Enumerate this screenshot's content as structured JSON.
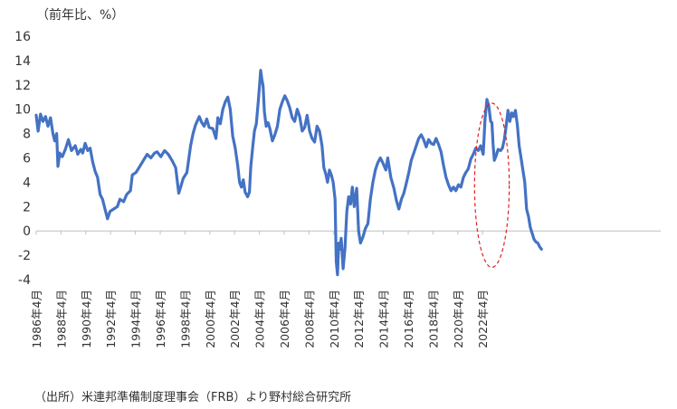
{
  "unit_label": "（前年比、%）",
  "source_note": "（出所）米連邦準備制度理事会（FRB）より野村総合研究所",
  "chart_data": {
    "type": "line",
    "title": "",
    "xlabel": "",
    "ylabel": "（前年比、%）",
    "ylim": [
      -4,
      16
    ],
    "y_ticks": [
      -4,
      -2,
      0,
      2,
      4,
      6,
      8,
      10,
      12,
      14,
      16
    ],
    "grid": false,
    "x_ticks": [
      "1986年4月",
      "1988年4月",
      "1990年4月",
      "1992年4月",
      "1994年4月",
      "1996年4月",
      "1998年4月",
      "2000年4月",
      "2002年4月",
      "2004年4月",
      "2006年4月",
      "2008年4月",
      "2010年4月",
      "2012年4月",
      "2014年4月",
      "2016年4月",
      "2018年4月",
      "2020年4月",
      "2022年4月"
    ],
    "series_color": "#4472c4",
    "annotation": {
      "type": "ellipse",
      "style": "dashed",
      "color": "#e02020",
      "x_range": [
        2021.6,
        2024.4
      ],
      "y_range": [
        -3,
        10.5
      ]
    },
    "series": [
      {
        "name": "",
        "points": [
          [
            1986.25,
            9.5
          ],
          [
            1986.4,
            8.2
          ],
          [
            1986.6,
            9.6
          ],
          [
            1986.8,
            9.0
          ],
          [
            1987.0,
            9.4
          ],
          [
            1987.2,
            8.6
          ],
          [
            1987.4,
            9.3
          ],
          [
            1987.6,
            8.0
          ],
          [
            1987.75,
            7.4
          ],
          [
            1987.9,
            8.0
          ],
          [
            1988.0,
            5.3
          ],
          [
            1988.15,
            6.4
          ],
          [
            1988.35,
            6.1
          ],
          [
            1988.6,
            6.7
          ],
          [
            1988.85,
            7.5
          ],
          [
            1989.1,
            6.6
          ],
          [
            1989.4,
            7.0
          ],
          [
            1989.6,
            6.3
          ],
          [
            1989.85,
            6.7
          ],
          [
            1990.0,
            6.4
          ],
          [
            1990.2,
            7.2
          ],
          [
            1990.4,
            6.6
          ],
          [
            1990.6,
            6.8
          ],
          [
            1990.8,
            5.7
          ],
          [
            1991.0,
            4.9
          ],
          [
            1991.2,
            4.4
          ],
          [
            1991.4,
            3.0
          ],
          [
            1991.6,
            2.6
          ],
          [
            1991.8,
            1.8
          ],
          [
            1992.0,
            1.0
          ],
          [
            1992.2,
            1.6
          ],
          [
            1992.5,
            1.8
          ],
          [
            1992.8,
            2.0
          ],
          [
            1993.0,
            2.6
          ],
          [
            1993.3,
            2.4
          ],
          [
            1993.55,
            3.0
          ],
          [
            1993.85,
            3.3
          ],
          [
            1994.0,
            4.6
          ],
          [
            1994.3,
            4.8
          ],
          [
            1994.6,
            5.3
          ],
          [
            1994.9,
            5.8
          ],
          [
            1995.2,
            6.3
          ],
          [
            1995.5,
            6.0
          ],
          [
            1995.8,
            6.4
          ],
          [
            1996.0,
            6.5
          ],
          [
            1996.3,
            6.1
          ],
          [
            1996.6,
            6.6
          ],
          [
            1996.9,
            6.3
          ],
          [
            1997.2,
            5.8
          ],
          [
            1997.5,
            5.2
          ],
          [
            1997.75,
            3.1
          ],
          [
            1997.9,
            3.6
          ],
          [
            1998.1,
            4.3
          ],
          [
            1998.4,
            4.8
          ],
          [
            1998.7,
            7.0
          ],
          [
            1998.9,
            8.0
          ],
          [
            1999.1,
            8.7
          ],
          [
            1999.4,
            9.4
          ],
          [
            1999.6,
            8.9
          ],
          [
            1999.8,
            8.6
          ],
          [
            2000.0,
            9.2
          ],
          [
            2000.2,
            8.5
          ],
          [
            2000.5,
            8.4
          ],
          [
            2000.75,
            7.6
          ],
          [
            2000.9,
            9.3
          ],
          [
            2001.1,
            8.8
          ],
          [
            2001.3,
            10.0
          ],
          [
            2001.5,
            10.6
          ],
          [
            2001.7,
            11.0
          ],
          [
            2001.9,
            10.0
          ],
          [
            2002.1,
            7.8
          ],
          [
            2002.3,
            6.8
          ],
          [
            2002.5,
            5.4
          ],
          [
            2002.65,
            4.0
          ],
          [
            2002.8,
            3.6
          ],
          [
            2002.95,
            4.2
          ],
          [
            2003.1,
            3.2
          ],
          [
            2003.3,
            2.8
          ],
          [
            2003.45,
            3.2
          ],
          [
            2003.55,
            5.2
          ],
          [
            2003.7,
            6.8
          ],
          [
            2003.85,
            8.2
          ],
          [
            2004.0,
            8.8
          ],
          [
            2004.15,
            10.5
          ],
          [
            2004.25,
            11.8
          ],
          [
            2004.35,
            13.2
          ],
          [
            2004.45,
            12.5
          ],
          [
            2004.55,
            11.9
          ],
          [
            2004.65,
            9.8
          ],
          [
            2004.8,
            8.6
          ],
          [
            2004.95,
            8.9
          ],
          [
            2005.1,
            8.4
          ],
          [
            2005.3,
            7.4
          ],
          [
            2005.5,
            7.9
          ],
          [
            2005.7,
            8.6
          ],
          [
            2005.9,
            10.0
          ],
          [
            2006.1,
            10.6
          ],
          [
            2006.3,
            11.1
          ],
          [
            2006.5,
            10.7
          ],
          [
            2006.7,
            10.1
          ],
          [
            2006.9,
            9.3
          ],
          [
            2007.1,
            9.0
          ],
          [
            2007.3,
            10.0
          ],
          [
            2007.5,
            9.4
          ],
          [
            2007.7,
            8.2
          ],
          [
            2007.9,
            8.5
          ],
          [
            2008.1,
            9.5
          ],
          [
            2008.3,
            8.2
          ],
          [
            2008.5,
            7.6
          ],
          [
            2008.7,
            7.3
          ],
          [
            2008.9,
            8.6
          ],
          [
            2009.1,
            8.2
          ],
          [
            2009.3,
            7.0
          ],
          [
            2009.45,
            5.2
          ],
          [
            2009.6,
            4.7
          ],
          [
            2009.75,
            4.0
          ],
          [
            2009.9,
            5.0
          ],
          [
            2010.05,
            4.6
          ],
          [
            2010.2,
            4.0
          ],
          [
            2010.35,
            2.6
          ],
          [
            2010.45,
            -2.5
          ],
          [
            2010.55,
            -3.6
          ],
          [
            2010.65,
            -1.0
          ],
          [
            2010.75,
            -1.5
          ],
          [
            2010.85,
            -0.6
          ],
          [
            2011.0,
            -3.1
          ],
          [
            2011.15,
            -1.5
          ],
          [
            2011.3,
            1.6
          ],
          [
            2011.45,
            2.8
          ],
          [
            2011.6,
            2.2
          ],
          [
            2011.75,
            3.6
          ],
          [
            2011.9,
            2.0
          ],
          [
            2012.1,
            3.5
          ],
          [
            2012.25,
            0.0
          ],
          [
            2012.4,
            -1.0
          ],
          [
            2012.6,
            -0.5
          ],
          [
            2012.8,
            0.2
          ],
          [
            2013.0,
            0.6
          ],
          [
            2013.2,
            2.6
          ],
          [
            2013.4,
            4.0
          ],
          [
            2013.6,
            5.0
          ],
          [
            2013.8,
            5.6
          ],
          [
            2014.0,
            6.0
          ],
          [
            2014.2,
            5.6
          ],
          [
            2014.45,
            5.0
          ],
          [
            2014.6,
            6.0
          ],
          [
            2014.85,
            4.4
          ],
          [
            2015.1,
            3.5
          ],
          [
            2015.3,
            2.5
          ],
          [
            2015.5,
            1.8
          ],
          [
            2015.7,
            2.6
          ],
          [
            2015.9,
            3.1
          ],
          [
            2016.1,
            3.9
          ],
          [
            2016.3,
            4.8
          ],
          [
            2016.5,
            5.8
          ],
          [
            2016.7,
            6.4
          ],
          [
            2016.9,
            7.0
          ],
          [
            2017.1,
            7.6
          ],
          [
            2017.3,
            7.9
          ],
          [
            2017.5,
            7.5
          ],
          [
            2017.7,
            6.9
          ],
          [
            2017.9,
            7.5
          ],
          [
            2018.1,
            7.2
          ],
          [
            2018.3,
            7.1
          ],
          [
            2018.5,
            7.6
          ],
          [
            2018.7,
            7.1
          ],
          [
            2018.9,
            6.5
          ],
          [
            2019.1,
            5.4
          ],
          [
            2019.3,
            4.4
          ],
          [
            2019.5,
            3.8
          ],
          [
            2019.7,
            3.3
          ],
          [
            2019.9,
            3.6
          ],
          [
            2020.1,
            3.3
          ],
          [
            2020.3,
            3.8
          ],
          [
            2020.5,
            3.6
          ],
          [
            2020.7,
            4.4
          ],
          [
            2020.9,
            4.8
          ],
          [
            2021.1,
            5.1
          ],
          [
            2021.3,
            5.9
          ],
          [
            2021.5,
            6.3
          ],
          [
            2021.7,
            6.8
          ],
          [
            2021.9,
            6.6
          ],
          [
            2022.1,
            7.0
          ],
          [
            2022.3,
            6.3
          ],
          [
            2022.45,
            9.2
          ],
          [
            2022.6,
            10.8
          ],
          [
            2022.75,
            10.3
          ],
          [
            2022.9,
            9.0
          ],
          [
            2023.0,
            8.9
          ],
          [
            2023.1,
            7.1
          ],
          [
            2023.2,
            5.8
          ],
          [
            2023.35,
            6.2
          ],
          [
            2023.5,
            6.7
          ],
          [
            2023.7,
            6.6
          ],
          [
            2023.85,
            6.8
          ],
          [
            2024.0,
            7.5
          ],
          [
            2024.15,
            8.6
          ],
          [
            2024.3,
            9.9
          ],
          [
            2024.45,
            9.0
          ],
          [
            2024.6,
            9.7
          ],
          [
            2024.75,
            9.4
          ],
          [
            2024.9,
            9.9
          ],
          [
            2025.05,
            8.7
          ],
          [
            2025.2,
            7.0
          ],
          [
            2025.35,
            6.0
          ],
          [
            2025.5,
            5.0
          ],
          [
            2025.65,
            4.0
          ],
          [
            2025.8,
            1.8
          ],
          [
            2025.95,
            1.2
          ],
          [
            2026.1,
            0.3
          ],
          [
            2026.25,
            -0.2
          ],
          [
            2026.4,
            -0.7
          ],
          [
            2026.55,
            -0.9
          ],
          [
            2026.7,
            -1.0
          ],
          [
            2026.85,
            -1.3
          ],
          [
            2027.0,
            -1.5
          ]
        ]
      }
    ]
  }
}
